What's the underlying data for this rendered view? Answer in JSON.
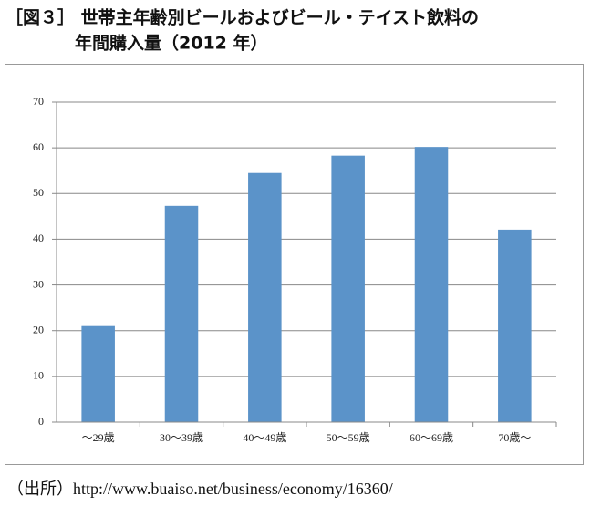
{
  "chart_data": {
    "type": "bar",
    "title": [
      "［図３］ 世帯主年齢別ビールおよびビール・テイスト飲料の",
      "年間購入量（2012 年）"
    ],
    "categories": [
      "～29歳",
      "30～39歳",
      "40～49歳",
      "50～59歳",
      "60～69歳",
      "70歳～"
    ],
    "values": [
      21,
      47.3,
      54.5,
      58.3,
      60.2,
      42.1
    ],
    "color": "#5b93c9",
    "ylim": [
      0,
      70
    ],
    "yticks": [
      0,
      10,
      20,
      30,
      40,
      50,
      60,
      70
    ],
    "grid": true,
    "source": "（出所）http://www.buaiso.net/business/economy/16360/"
  }
}
